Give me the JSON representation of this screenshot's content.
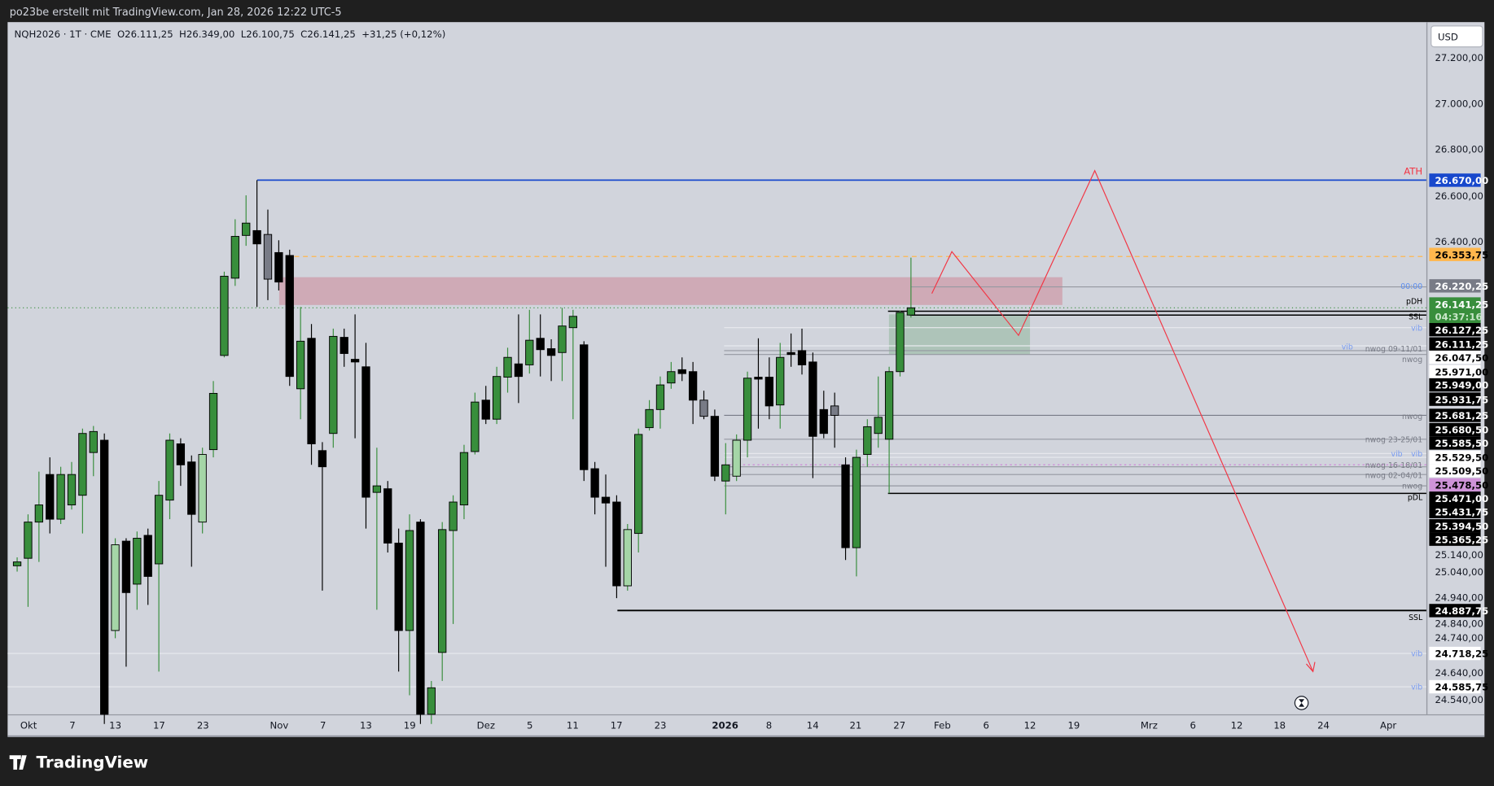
{
  "header": {
    "credit": "po23be erstellt mit TradingView.com, Jan 28, 2026 12:22 UTC-5",
    "legend": "NQH2026 · 1T · CME  O26.111,25  H26.349,00  L26.100,75  C26.141,25  +31,25 (+0,12%)"
  },
  "footer": {
    "logo_text": "TradingView"
  },
  "price_axis": {
    "currency_button": "USD",
    "ticks": [
      "27.200,00",
      "27.000,00",
      "26.800,00",
      "26.600,00",
      "26.400,00",
      "25.140,00",
      "25.040,00",
      "24.940,00",
      "24.840,00",
      "24.740,00",
      "24.640,00",
      "24.540,00"
    ],
    "badges": [
      {
        "text": "26.670,00",
        "bg": "#1848cc",
        "fg": "#ffffff"
      },
      {
        "text": "26.353,75",
        "bg": "#ffb74d",
        "fg": "#000000"
      },
      {
        "text": "26.220,25",
        "bg": "#787b86",
        "fg": "#ffffff"
      },
      {
        "text": "26.141,25",
        "bg": "#388e3c",
        "fg": "#ffffff",
        "sub": "04:37:16"
      },
      {
        "text": "26.127,25",
        "bg": "#000000",
        "fg": "#ffffff"
      },
      {
        "text": "26.111,25",
        "bg": "#000000",
        "fg": "#ffffff"
      },
      {
        "text": "26.047,50",
        "bg": "#ffffff",
        "fg": "#000000"
      },
      {
        "text": "25.971,00",
        "bg": "#ffffff",
        "fg": "#000000"
      },
      {
        "text": "25.949,00",
        "bg": "#000000",
        "fg": "#ffffff"
      },
      {
        "text": "25.931,75",
        "bg": "#000000",
        "fg": "#ffffff"
      },
      {
        "text": "25.681,25",
        "bg": "#000000",
        "fg": "#ffffff"
      },
      {
        "text": "25.680,50",
        "bg": "#000000",
        "fg": "#ffffff"
      },
      {
        "text": "25.585,50",
        "bg": "#000000",
        "fg": "#ffffff"
      },
      {
        "text": "25.529,50",
        "bg": "#ffffff",
        "fg": "#000000"
      },
      {
        "text": "25.509,50",
        "bg": "#ffffff",
        "fg": "#000000"
      },
      {
        "text": "25.478,50",
        "bg": "#ce93d8",
        "fg": "#000000"
      },
      {
        "text": "25.471,00",
        "bg": "#000000",
        "fg": "#ffffff"
      },
      {
        "text": "25.431,75",
        "bg": "#000000",
        "fg": "#ffffff"
      },
      {
        "text": "25.394,50",
        "bg": "#000000",
        "fg": "#ffffff"
      },
      {
        "text": "25.365,25",
        "bg": "#000000",
        "fg": "#ffffff"
      },
      {
        "text": "24.887,75",
        "bg": "#000000",
        "fg": "#ffffff"
      },
      {
        "text": "24.718,25",
        "bg": "#ffffff",
        "fg": "#000000"
      },
      {
        "text": "24.585,75",
        "bg": "#ffffff",
        "fg": "#000000"
      }
    ]
  },
  "time_axis": [
    "Okt",
    "7",
    "13",
    "17",
    "23",
    "Nov",
    "7",
    "13",
    "19",
    "Dez",
    "5",
    "11",
    "17",
    "23",
    "2026",
    "8",
    "14",
    "21",
    "27",
    "Feb",
    "6",
    "12",
    "19",
    "Mrz",
    "6",
    "12",
    "18",
    "24",
    "Apr"
  ],
  "level_labels": [
    {
      "text": "ATH",
      "color": "#f23645"
    },
    {
      "text": "00:00",
      "color": "#5b8def"
    },
    {
      "text": "pDH",
      "color": "#000000"
    },
    {
      "text": "SSL",
      "color": "#000000"
    },
    {
      "text": "vib",
      "color": "#7a9cf0"
    },
    {
      "text": "vib",
      "color": "#7a9cf0"
    },
    {
      "text": "nwog 09-11/01",
      "color": "#787b86"
    },
    {
      "text": "nwog",
      "color": "#787b86"
    },
    {
      "text": "nwog",
      "color": "#787b86"
    },
    {
      "text": "nwog 23-25/01",
      "color": "#787b86"
    },
    {
      "text": "vib",
      "color": "#7a9cf0"
    },
    {
      "text": "vib",
      "color": "#7a9cf0"
    },
    {
      "text": "nwog 16-18/01",
      "color": "#787b86"
    },
    {
      "text": "nwog 02-04/01",
      "color": "#787b86"
    },
    {
      "text": "nwog",
      "color": "#787b86"
    },
    {
      "text": "pDL",
      "color": "#000000"
    },
    {
      "text": "SSL",
      "color": "#000000"
    },
    {
      "text": "vib",
      "color": "#7a9cf0"
    },
    {
      "text": "vib",
      "color": "#7a9cf0"
    }
  ],
  "colors": {
    "up": "#388e3c",
    "down": "#000000",
    "background": "#d1d4dc",
    "ath_line": "#1848cc",
    "projection": "#f23645"
  },
  "chart_data": {
    "type": "candlestick",
    "symbol": "NQH2026",
    "interval": "1T",
    "exchange": "CME",
    "ohlc": [
      [
        25073,
        25108,
        25049,
        25089
      ],
      [
        25104,
        25286,
        24903,
        25254
      ],
      [
        25254,
        25463,
        25089,
        25325
      ],
      [
        25451,
        25522,
        25207,
        25266
      ],
      [
        25266,
        25483,
        25246,
        25451
      ],
      [
        25325,
        25503,
        25306,
        25451
      ],
      [
        25365,
        25641,
        25207,
        25621
      ],
      [
        25542,
        25652,
        25444,
        25629
      ],
      [
        25593,
        25621,
        24418,
        24458
      ],
      [
        24805,
        25187,
        24773,
        25160
      ],
      [
        25175,
        25187,
        24655,
        24962
      ],
      [
        24997,
        25215,
        24891,
        25187
      ],
      [
        25199,
        25227,
        24911,
        25029
      ],
      [
        25081,
        25424,
        24635,
        25365
      ],
      [
        25345,
        25621,
        25266,
        25593
      ],
      [
        25578,
        25601,
        25404,
        25491
      ],
      [
        25503,
        25530,
        25069,
        25286
      ],
      [
        25254,
        25562,
        25207,
        25534
      ],
      [
        25554,
        25838,
        25522,
        25787
      ],
      [
        25944,
        26291,
        25936,
        26272
      ],
      [
        26264,
        26508,
        26232,
        26437
      ],
      [
        26441,
        26607,
        26398,
        26492
      ],
      [
        26461,
        26670,
        26145,
        26406
      ],
      [
        26445,
        26548,
        26173,
        26260
      ],
      [
        26370,
        26421,
        26213,
        26248
      ],
      [
        26358,
        26382,
        25818,
        25857
      ],
      [
        25806,
        26145,
        25680,
        26003
      ],
      [
        26015,
        26074,
        25491,
        25578
      ],
      [
        25550,
        25585,
        24970,
        25483
      ],
      [
        25621,
        26055,
        25562,
        26023
      ],
      [
        26019,
        26055,
        25897,
        25952
      ],
      [
        25928,
        26114,
        25601,
        25917
      ],
      [
        25897,
        25996,
        25227,
        25357
      ],
      [
        25377,
        25562,
        24891,
        25404
      ],
      [
        25392,
        25424,
        25128,
        25167
      ],
      [
        25167,
        25227,
        24635,
        24805
      ],
      [
        24805,
        25286,
        24537,
        25219
      ],
      [
        25254,
        25266,
        24418,
        24458
      ],
      [
        24458,
        24596,
        24418,
        24568
      ],
      [
        24714,
        25254,
        24596,
        25223
      ],
      [
        25219,
        25365,
        24832,
        25337
      ],
      [
        25325,
        25574,
        25266,
        25542
      ],
      [
        25546,
        25790,
        25534,
        25751
      ],
      [
        25759,
        25818,
        25660,
        25680
      ],
      [
        25680,
        25897,
        25660,
        25857
      ],
      [
        25854,
        25976,
        25790,
        25936
      ],
      [
        25909,
        26114,
        25747,
        25857
      ],
      [
        25905,
        26133,
        25869,
        26007
      ],
      [
        26015,
        26114,
        25857,
        25968
      ],
      [
        25972,
        26011,
        25838,
        25944
      ],
      [
        25956,
        26141,
        25838,
        26066
      ],
      [
        26059,
        26133,
        25680,
        26106
      ],
      [
        25988,
        26003,
        25424,
        25471
      ],
      [
        25475,
        25503,
        25286,
        25357
      ],
      [
        25357,
        25451,
        25069,
        25333
      ],
      [
        25337,
        25365,
        24939,
        24990
      ],
      [
        24990,
        25246,
        24970,
        25223
      ],
      [
        25207,
        25641,
        25128,
        25617
      ],
      [
        25645,
        25759,
        25633,
        25720
      ],
      [
        25720,
        25857,
        25641,
        25822
      ],
      [
        25830,
        25917,
        25806,
        25877
      ],
      [
        25885,
        25936,
        25838,
        25869
      ],
      [
        25877,
        25917,
        25660,
        25759
      ],
      [
        25759,
        25798,
        25680,
        25692
      ],
      [
        25692,
        25720,
        25424,
        25444
      ],
      [
        25424,
        25581,
        25286,
        25491
      ],
      [
        25444,
        25617,
        25424,
        25593
      ],
      [
        25593,
        25877,
        25522,
        25850
      ],
      [
        25854,
        26015,
        25641,
        25846
      ],
      [
        25854,
        25936,
        25680,
        25735
      ],
      [
        25739,
        25996,
        25641,
        25936
      ],
      [
        25956,
        26035,
        25897,
        25948
      ],
      [
        25964,
        26055,
        25865,
        25905
      ],
      [
        25917,
        25956,
        25436,
        25609
      ],
      [
        25720,
        25798,
        25601,
        25621
      ],
      [
        25735,
        25790,
        25562,
        25696
      ],
      [
        25491,
        25522,
        25097,
        25148
      ],
      [
        25148,
        25554,
        25029,
        25522
      ],
      [
        25534,
        25680,
        25483,
        25649
      ],
      [
        25621,
        25857,
        25562,
        25688
      ],
      [
        25597,
        25897,
        25373,
        25877
      ],
      [
        25877,
        26129,
        25857,
        26122
      ],
      [
        26111.25,
        26349,
        26100.75,
        26141.25
      ]
    ],
    "levels": [
      26670,
      26353.75,
      26228,
      26141.25,
      26127.25,
      26111.25,
      26059,
      25984,
      25964,
      25948,
      25696,
      25597,
      25538,
      25522,
      25491,
      25483,
      25451,
      25404,
      25373,
      24887.75,
      24710,
      24572
    ],
    "zones": [
      {
        "kind": "supply",
        "top": 26268,
        "bottom": 26153,
        "color": "rgba(205,120,135,0.45)"
      },
      {
        "kind": "demand",
        "top": 26114,
        "bottom": 25948,
        "color": "rgba(140,180,150,0.5)"
      }
    ],
    "yrange": [
      24540,
      27250
    ]
  }
}
